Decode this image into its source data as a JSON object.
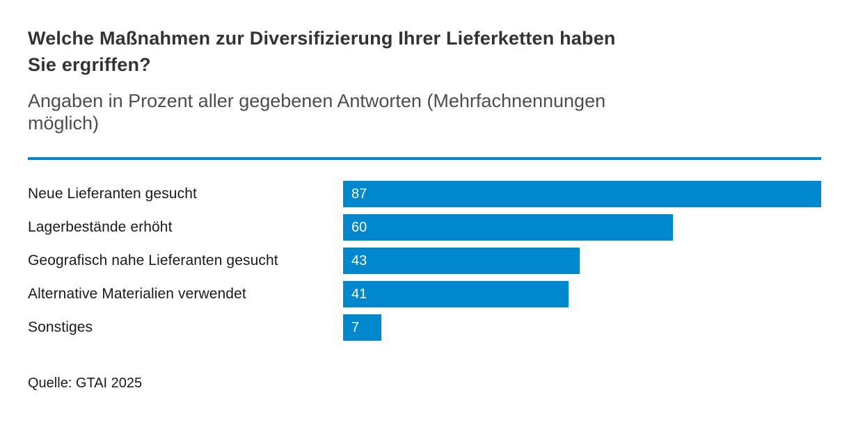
{
  "header": {
    "title_display": "Welche Maßnahmen zur Diversifizierung Ihrer Lieferketten haben\nSie ergriffen?",
    "subtitle_display": "Angaben in Prozent aller gegebenen Antworten (Mehrfachnennungen\nmöglich)"
  },
  "footer": {
    "source": "Quelle: GTAI 2025"
  },
  "colors": {
    "accent_blue": "#0088ce",
    "title_text": "#333333",
    "subtitle_text": "#4d4d4d",
    "label_text": "#1a1a1a",
    "value_text": "#ffffff"
  },
  "chart_data": {
    "type": "bar",
    "orientation": "horizontal",
    "title": "Welche Maßnahmen zur Diversifizierung Ihrer Lieferketten haben Sie ergriffen?",
    "subtitle": "Angaben in Prozent aller gegebenen Antworten (Mehrfachnennungen möglich)",
    "unit": "percent",
    "categories": [
      "Neue Lieferanten gesucht",
      "Lagerbestände erhöht",
      "Geografisch nahe Lieferanten gesucht",
      "Alternative Materialien verwendet",
      "Sonstiges"
    ],
    "values": [
      87,
      60,
      43,
      41,
      7
    ],
    "xlim": [
      0,
      87
    ],
    "value_labels": "inside-start",
    "grid": false,
    "legend": false,
    "source": "Quelle: GTAI 2025"
  }
}
